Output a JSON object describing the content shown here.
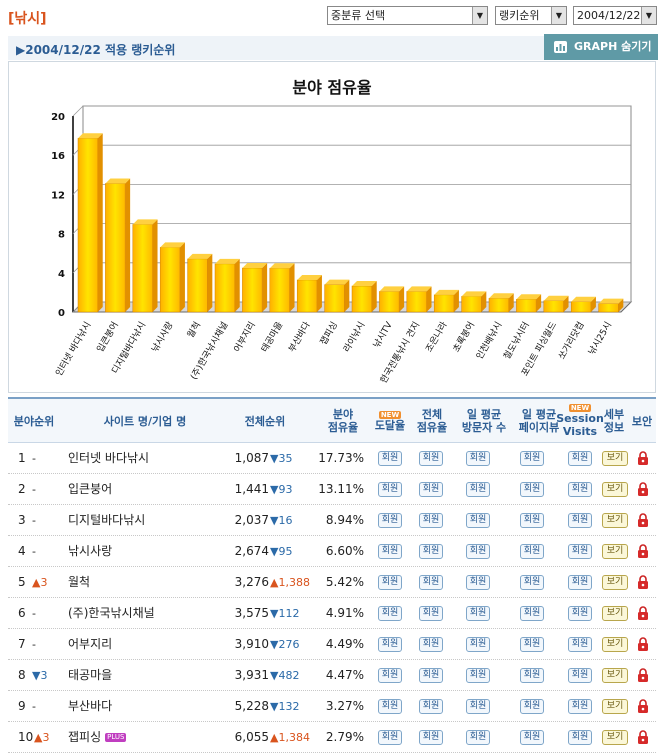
{
  "header": {
    "category_title": "[낚시]",
    "select_category": "중분류 선택",
    "select_rank": "랭키순위",
    "select_date": "2004/12/22"
  },
  "datebar": {
    "label": "▶2004/12/22 적용 랭키순위",
    "graph_button": "GRAPH 숨기기"
  },
  "chart_data": {
    "type": "bar",
    "title": "분야 점유율",
    "ylim": [
      0,
      20
    ],
    "yticks": [
      "0",
      "4",
      "8",
      "12",
      "16",
      "20"
    ],
    "grid": true,
    "categories": [
      "인터넷 바다낚시",
      "입큰붕어",
      "디지털바다낚시",
      "낚시사랑",
      "월척",
      "(주)한국낚시채널",
      "어부지리",
      "태공마을",
      "부산바다",
      "잽피싱",
      "라이낚시",
      "낚시TV",
      "한국전통낚시 견지",
      "조은나라",
      "초록붕어",
      "인천배낚시",
      "철도낚시터",
      "포인트 피싱월드",
      "쏘가리닷컴",
      "낚시25시"
    ],
    "values": [
      17.73,
      13.11,
      8.94,
      6.6,
      5.42,
      4.91,
      4.49,
      4.47,
      3.27,
      2.79,
      2.65,
      2.1,
      2.1,
      1.75,
      1.6,
      1.4,
      1.3,
      1.15,
      1.05,
      0.85
    ]
  },
  "table": {
    "headers": {
      "rank": "분야순위",
      "site": "사이트 명/기업 명",
      "overall": "전체순위",
      "share_1": "분야",
      "share_2": "점유율",
      "reach": "도달율",
      "total_1": "전체",
      "total_2": "점유율",
      "daily_1": "일 평균",
      "daily_2": "방문자 수",
      "pv_1": "일 평균",
      "pv_2": "페이지뷰",
      "session_1": "Session",
      "session_2": "Visits",
      "detail_1": "세부",
      "detail_2": "정보",
      "security": "보안",
      "new_badge": "NEW"
    },
    "member_label": "회원",
    "view_label": "보기",
    "plus_label": "PLUS",
    "rows": [
      {
        "rank": "1",
        "change": "-",
        "site": "인터넷 바다낚시",
        "overall": "1,087",
        "delta": "▼35",
        "share": "17.73%"
      },
      {
        "rank": "2",
        "change": "-",
        "site": "입큰붕어",
        "overall": "1,441",
        "delta": "▼93",
        "share": "13.11%"
      },
      {
        "rank": "3",
        "change": "-",
        "site": "디지털바다낚시",
        "overall": "2,037",
        "delta": "▼16",
        "share": "8.94%"
      },
      {
        "rank": "4",
        "change": "-",
        "site": "낚시사랑",
        "overall": "2,674",
        "delta": "▼95",
        "share": "6.60%"
      },
      {
        "rank": "5",
        "change": "▲3",
        "site": "월척",
        "overall": "3,276",
        "delta": "▲1,388",
        "share": "5.42%"
      },
      {
        "rank": "6",
        "change": "-",
        "site": "(주)한국낚시채널",
        "overall": "3,575",
        "delta": "▼112",
        "share": "4.91%"
      },
      {
        "rank": "7",
        "change": "-",
        "site": "어부지리",
        "overall": "3,910",
        "delta": "▼276",
        "share": "4.49%"
      },
      {
        "rank": "8",
        "change": "▼3",
        "site": "태공마을",
        "overall": "3,931",
        "delta": "▼482",
        "share": "4.47%"
      },
      {
        "rank": "9",
        "change": "-",
        "site": "부산바다",
        "overall": "5,228",
        "delta": "▼132",
        "share": "3.27%"
      },
      {
        "rank": "10",
        "change": "▲3",
        "site": "잽피싱",
        "overall": "6,055",
        "delta": "▲1,384",
        "share": "2.79%",
        "plus": true
      }
    ]
  }
}
